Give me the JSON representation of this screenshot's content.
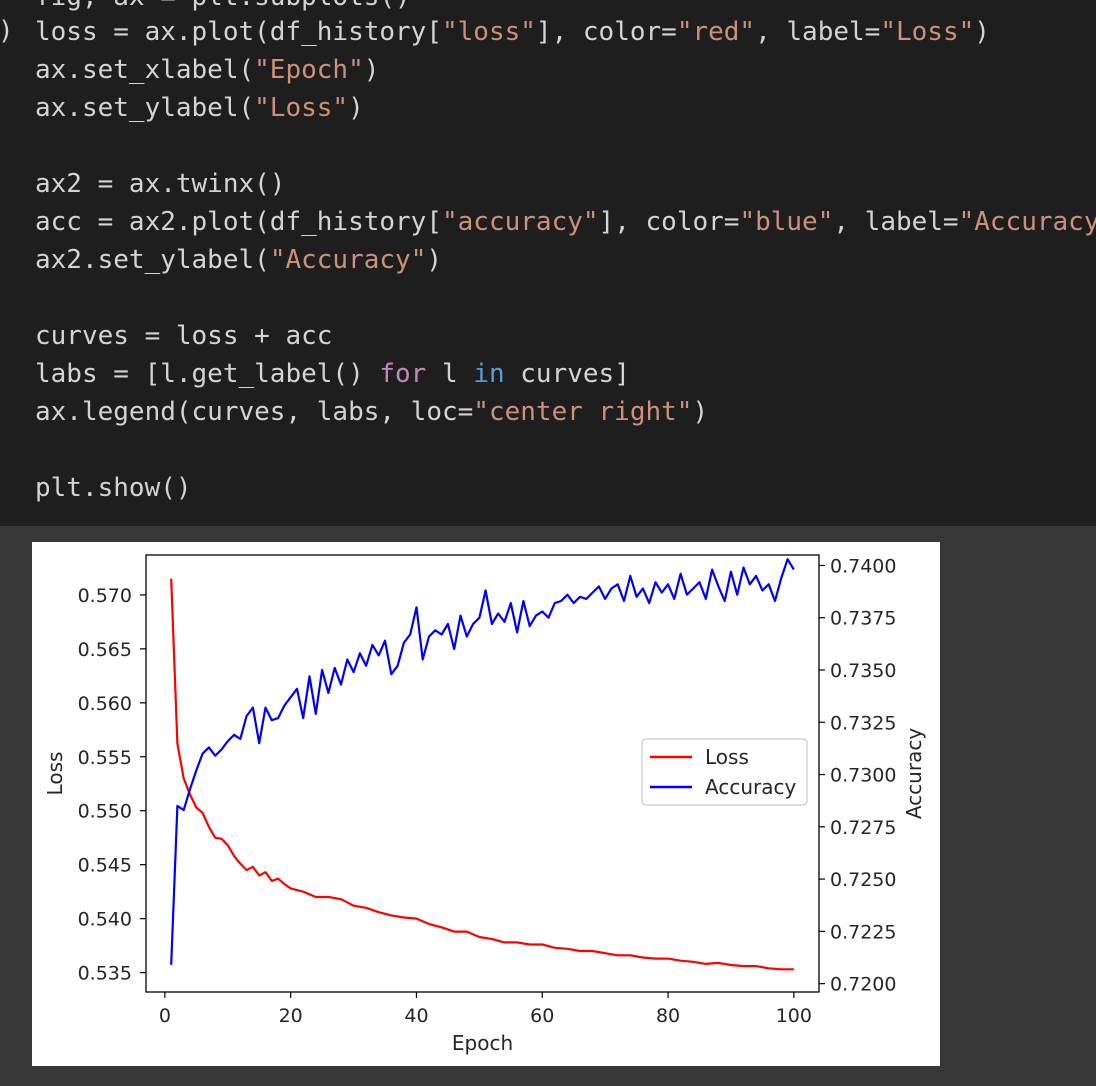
{
  "code": {
    "cell_indicator": ")",
    "partial_top_line": "fig, ax = plt.subplots()",
    "lines": [
      [
        {
          "t": "loss = ax.plot(df_history["
        },
        {
          "t": "\"loss\"",
          "c": "str"
        },
        {
          "t": "], color="
        },
        {
          "t": "\"red\"",
          "c": "str"
        },
        {
          "t": ", label="
        },
        {
          "t": "\"Loss\"",
          "c": "str"
        },
        {
          "t": ")"
        }
      ],
      [
        {
          "t": "ax.set_xlabel("
        },
        {
          "t": "\"Epoch\"",
          "c": "str"
        },
        {
          "t": ")"
        }
      ],
      [
        {
          "t": "ax.set_ylabel("
        },
        {
          "t": "\"Loss\"",
          "c": "str"
        },
        {
          "t": ")"
        }
      ],
      [],
      [
        {
          "t": "ax2 = ax.twinx()"
        }
      ],
      [
        {
          "t": "acc = ax2.plot(df_history["
        },
        {
          "t": "\"accuracy\"",
          "c": "str"
        },
        {
          "t": "], color="
        },
        {
          "t": "\"blue\"",
          "c": "str"
        },
        {
          "t": ", label="
        },
        {
          "t": "\"Accuracy\"",
          "c": "str"
        },
        {
          "t": ")"
        }
      ],
      [
        {
          "t": "ax2.set_ylabel("
        },
        {
          "t": "\"Accuracy\"",
          "c": "str"
        },
        {
          "t": ")"
        }
      ],
      [],
      [
        {
          "t": "curves = loss + acc"
        }
      ],
      [
        {
          "t": "labs = [l.get_label() "
        },
        {
          "t": "for",
          "c": "kw"
        },
        {
          "t": " l "
        },
        {
          "t": "in",
          "c": "kw2"
        },
        {
          "t": " curves]"
        }
      ],
      [
        {
          "t": "ax.legend(curves, labs, loc="
        },
        {
          "t": "\"center right\"",
          "c": "str"
        },
        {
          "t": ")"
        }
      ],
      [],
      [
        {
          "t": "plt.show()"
        }
      ]
    ]
  },
  "chart_data": {
    "type": "line",
    "xlabel": "Epoch",
    "ylabel": "Loss",
    "y2label": "Accuracy",
    "xlim": [
      -3,
      104
    ],
    "ylim": [
      0.5332,
      0.5737
    ],
    "y2lim": [
      0.7196,
      0.7405
    ],
    "xticks": [
      0,
      20,
      40,
      60,
      80,
      100
    ],
    "yticks": [
      "0.535",
      "0.540",
      "0.545",
      "0.550",
      "0.555",
      "0.560",
      "0.565",
      "0.570"
    ],
    "y2ticks": [
      "0.7200",
      "0.7225",
      "0.7250",
      "0.7275",
      "0.7300",
      "0.7325",
      "0.7350",
      "0.7375",
      "0.7400"
    ],
    "legend": {
      "placement": "center right",
      "entries": [
        "Loss",
        "Accuracy"
      ]
    },
    "colors": {
      "Loss": "#ff0000",
      "Accuracy": "#0000ff"
    },
    "series": [
      {
        "name": "Loss",
        "axis": "left",
        "x": [
          1,
          2,
          3,
          4,
          5,
          6,
          7,
          8,
          9,
          10,
          11,
          12,
          13,
          14,
          15,
          16,
          17,
          18,
          19,
          20,
          22,
          24,
          26,
          28,
          30,
          32,
          34,
          36,
          38,
          40,
          42,
          44,
          46,
          48,
          50,
          52,
          54,
          56,
          58,
          60,
          62,
          64,
          66,
          68,
          70,
          72,
          74,
          76,
          78,
          80,
          82,
          84,
          86,
          88,
          90,
          92,
          94,
          96,
          98,
          100
        ],
        "y": [
          0.5715,
          0.5562,
          0.553,
          0.5515,
          0.5503,
          0.5498,
          0.5485,
          0.5475,
          0.5474,
          0.5468,
          0.5458,
          0.5451,
          0.5445,
          0.5448,
          0.544,
          0.5443,
          0.5435,
          0.5437,
          0.5432,
          0.5428,
          0.5425,
          0.542,
          0.542,
          0.5418,
          0.5412,
          0.541,
          0.5406,
          0.5403,
          0.5401,
          0.54,
          0.5395,
          0.5392,
          0.5388,
          0.5388,
          0.5383,
          0.5381,
          0.5378,
          0.5378,
          0.5376,
          0.5376,
          0.5373,
          0.5372,
          0.537,
          0.537,
          0.5368,
          0.5366,
          0.5366,
          0.5364,
          0.5363,
          0.5363,
          0.5361,
          0.536,
          0.5358,
          0.5359,
          0.5357,
          0.5356,
          0.5356,
          0.5354,
          0.5353,
          0.5353
        ]
      },
      {
        "name": "Accuracy",
        "axis": "right",
        "x": [
          1,
          2,
          3,
          4,
          5,
          6,
          7,
          8,
          9,
          10,
          11,
          12,
          13,
          14,
          15,
          16,
          17,
          18,
          19,
          20,
          21,
          22,
          23,
          24,
          25,
          26,
          27,
          28,
          29,
          30,
          31,
          32,
          33,
          34,
          35,
          36,
          37,
          38,
          39,
          40,
          41,
          42,
          43,
          44,
          45,
          46,
          47,
          48,
          49,
          50,
          51,
          52,
          53,
          54,
          55,
          56,
          57,
          58,
          59,
          60,
          61,
          62,
          63,
          64,
          65,
          66,
          67,
          68,
          69,
          70,
          71,
          72,
          73,
          74,
          75,
          76,
          77,
          78,
          79,
          80,
          81,
          82,
          83,
          84,
          85,
          86,
          87,
          88,
          89,
          90,
          91,
          92,
          93,
          94,
          95,
          96,
          97,
          98,
          99,
          100
        ],
        "y": [
          0.7209,
          0.7285,
          0.7283,
          0.7293,
          0.7302,
          0.731,
          0.7313,
          0.7309,
          0.7312,
          0.7316,
          0.7319,
          0.7317,
          0.7328,
          0.7332,
          0.7315,
          0.7332,
          0.7326,
          0.7327,
          0.7333,
          0.7337,
          0.7341,
          0.7327,
          0.7347,
          0.7329,
          0.735,
          0.7339,
          0.7351,
          0.7343,
          0.7355,
          0.7349,
          0.7358,
          0.7352,
          0.7362,
          0.7357,
          0.7364,
          0.7348,
          0.7352,
          0.7363,
          0.7367,
          0.738,
          0.7355,
          0.7366,
          0.7369,
          0.7367,
          0.7372,
          0.736,
          0.7376,
          0.7366,
          0.7372,
          0.7375,
          0.7388,
          0.7372,
          0.7377,
          0.7373,
          0.7382,
          0.7368,
          0.7383,
          0.7371,
          0.7376,
          0.7378,
          0.7375,
          0.7382,
          0.7383,
          0.7386,
          0.7382,
          0.7385,
          0.7384,
          0.7387,
          0.739,
          0.7384,
          0.7389,
          0.7391,
          0.7383,
          0.7395,
          0.7385,
          0.7389,
          0.7382,
          0.7392,
          0.7387,
          0.7391,
          0.7384,
          0.7396,
          0.7386,
          0.7389,
          0.7392,
          0.7384,
          0.7398,
          0.739,
          0.7383,
          0.7397,
          0.7386,
          0.7399,
          0.7391,
          0.7395,
          0.7388,
          0.7391,
          0.7383,
          0.7394,
          0.7403,
          0.7398
        ]
      }
    ]
  }
}
